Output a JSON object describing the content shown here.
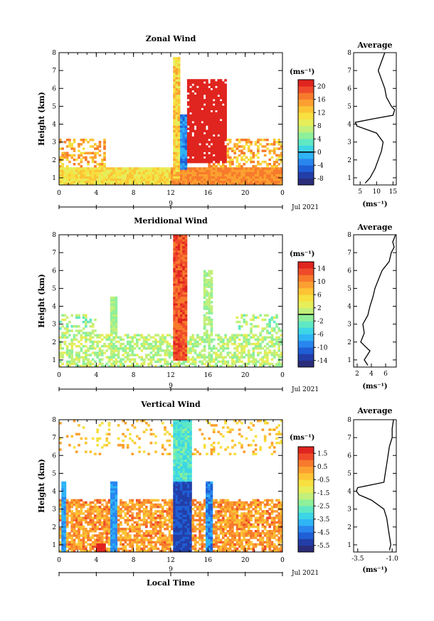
{
  "chart_data": [
    {
      "type": "heatmap",
      "title": "Zonal Wind",
      "ylabel": "Height (km)",
      "xticks": [
        "0",
        "4",
        "8",
        "12",
        "16",
        "20",
        "0"
      ],
      "yticks": [
        "1",
        "2",
        "3",
        "4",
        "5",
        "6",
        "7",
        "8"
      ],
      "xlim": [
        0,
        24
      ],
      "ylim": [
        0.6,
        8.0
      ],
      "date_label": "Jul 2021",
      "day_label": "9",
      "colorbar": {
        "unit": "(ms⁻¹)",
        "ticks": [
          "20",
          "16",
          "12",
          "8",
          "4",
          "0",
          "-4",
          "-8"
        ],
        "range": [
          -10,
          22
        ],
        "zero_line": 0
      },
      "average": {
        "title": "Average",
        "xticks": [
          "5",
          "10",
          "15"
        ],
        "xlim": [
          3,
          16
        ],
        "unit": "(ms⁻¹)",
        "profile_height": [
          0.7,
          1.0,
          1.5,
          2.0,
          2.5,
          3.0,
          3.5,
          3.9,
          4.1,
          4.3,
          4.5,
          4.8,
          5.0,
          5.5,
          6.0,
          6.5,
          7.0,
          7.5,
          8.0
        ],
        "profile_value": [
          6.5,
          8.0,
          9.5,
          10.5,
          11.5,
          12.0,
          10.0,
          4.0,
          3.5,
          9.0,
          15.0,
          15.5,
          14.5,
          13.0,
          12.5,
          11.5,
          10.5,
          11.5,
          12.5
        ]
      }
    },
    {
      "type": "heatmap",
      "title": "Meridional Wind",
      "ylabel": "Height (km)",
      "xticks": [
        "0",
        "4",
        "8",
        "12",
        "16",
        "20",
        "0"
      ],
      "yticks": [
        "1",
        "2",
        "3",
        "4",
        "5",
        "6",
        "7",
        "8"
      ],
      "xlim": [
        0,
        24
      ],
      "ylim": [
        0.6,
        8.0
      ],
      "date_label": "Jul 2021",
      "day_label": "9",
      "colorbar": {
        "unit": "(ms⁻¹)",
        "ticks": [
          "14",
          "10",
          "6",
          "2",
          "-2",
          "-6",
          "-10",
          "-14"
        ],
        "range": [
          -16,
          16
        ],
        "zero_line": 0
      },
      "average": {
        "title": "Average",
        "xticks": [
          "2",
          "4",
          "6"
        ],
        "xlim": [
          1.5,
          7.5
        ],
        "unit": "(ms⁻¹)",
        "profile_height": [
          0.7,
          1.0,
          1.5,
          2.0,
          2.5,
          3.0,
          3.5,
          4.0,
          4.5,
          5.0,
          5.5,
          6.0,
          6.5,
          7.0,
          7.3,
          7.6,
          8.0
        ],
        "profile_value": [
          3.5,
          3.0,
          3.8,
          2.5,
          3.0,
          2.8,
          3.5,
          3.8,
          4.2,
          4.5,
          5.0,
          5.5,
          6.5,
          6.8,
          7.2,
          7.0,
          7.4
        ]
      }
    },
    {
      "type": "heatmap",
      "title": "Vertical Wind",
      "xlabel": "Local Time",
      "ylabel": "Height (km)",
      "xticks": [
        "0",
        "4",
        "8",
        "12",
        "16",
        "20",
        "0"
      ],
      "yticks": [
        "1",
        "2",
        "3",
        "4",
        "5",
        "6",
        "7",
        "8"
      ],
      "xlim": [
        0,
        24
      ],
      "ylim": [
        0.6,
        8.0
      ],
      "date_label": "Jul 2021",
      "day_label": "9",
      "colorbar": {
        "unit": "(ms⁻¹)",
        "ticks": [
          "1.5",
          "0.5",
          "-0.5",
          "-1.5",
          "-2.5",
          "-3.5",
          "-4.5",
          "-5.5"
        ],
        "range": [
          -6,
          2
        ],
        "zero_line": null
      },
      "average": {
        "title": "Average",
        "xticks": [
          "-3.5",
          "-1.0"
        ],
        "xlim": [
          -3.8,
          -0.7
        ],
        "unit": "(ms⁻¹)",
        "profile_height": [
          0.7,
          1.0,
          1.5,
          2.0,
          2.5,
          3.0,
          3.5,
          3.8,
          4.0,
          4.2,
          4.5,
          5.0,
          5.5,
          6.0,
          6.5,
          7.0,
          7.5,
          8.0
        ],
        "profile_value": [
          -1.2,
          -1.1,
          -1.2,
          -1.3,
          -1.4,
          -1.6,
          -2.5,
          -3.4,
          -3.6,
          -3.5,
          -1.6,
          -1.5,
          -1.4,
          -1.3,
          -1.2,
          -1.0,
          -1.0,
          -0.9
        ]
      }
    }
  ]
}
